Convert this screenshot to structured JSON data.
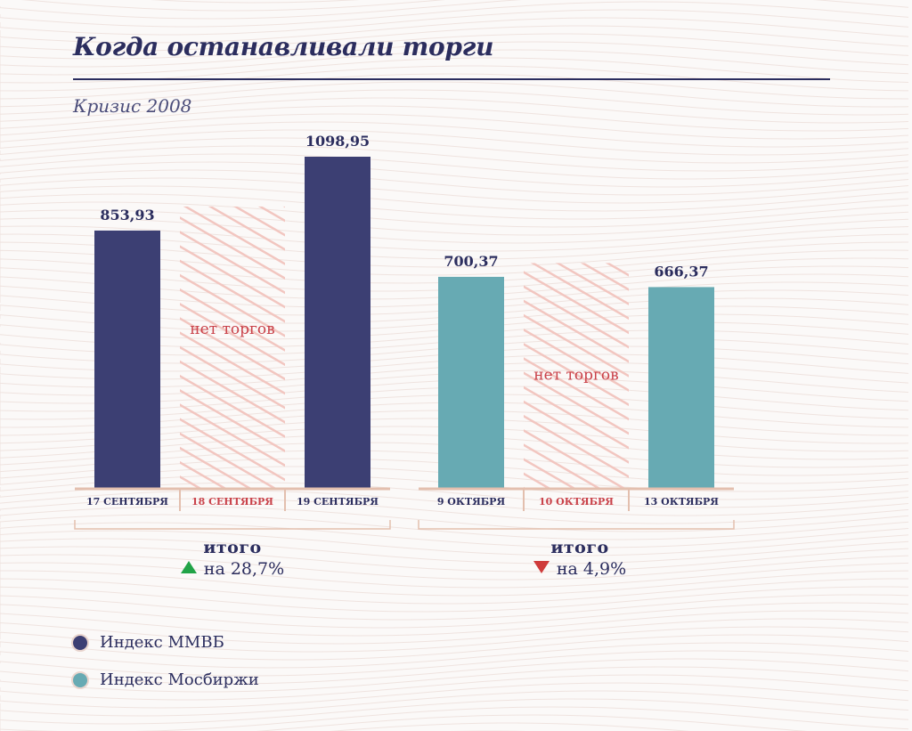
{
  "header": {
    "title": "Когда останавливали торги",
    "subtitle": "Кризис 2008"
  },
  "chart_data": {
    "type": "bar",
    "no_trade_label": "нет торгов",
    "groups": [
      {
        "series": "Индекс ММВБ",
        "categories": [
          {
            "label": "17 СЕНТЯБРЯ",
            "value": 853.93,
            "value_label": "853,93",
            "traded": true
          },
          {
            "label": "18 СЕНТЯБРЯ",
            "value": null,
            "traded": false
          },
          {
            "label": "19 СЕНТЯБРЯ",
            "value": 1098.95,
            "value_label": "1098,95",
            "traded": true
          }
        ],
        "summary": {
          "title": "итого",
          "change": "на 28,7%",
          "direction": "up"
        }
      },
      {
        "series": "Индекс Мосбиржи",
        "categories": [
          {
            "label": "9 ОКТЯБРЯ",
            "value": 700.37,
            "value_label": "700,37",
            "traded": true
          },
          {
            "label": "10 ОКТЯБРЯ",
            "value": null,
            "traded": false
          },
          {
            "label": "13 ОКТЯБРЯ",
            "value": 666.37,
            "value_label": "666,37",
            "traded": true
          }
        ],
        "summary": {
          "title": "итого",
          "change": "на 4,9%",
          "direction": "down"
        }
      }
    ],
    "ylim": [
      0,
      1098.95
    ],
    "grid": false,
    "legend_position": "bottom-left",
    "series": [
      {
        "name": "Индекс ММВБ",
        "color": "#3c3f73"
      },
      {
        "name": "Индекс Мосбиржи",
        "color": "#67aab3"
      }
    ]
  },
  "colors": {
    "accent": "#2b2d5e",
    "no_trade": "#c9424a",
    "axis": "#e3bfae",
    "up": "#21a347",
    "down": "#cf3b3b"
  },
  "summaries": [
    {
      "title": "итого",
      "change": "на 28,7%"
    },
    {
      "title": "итого",
      "change": "на 4,9%"
    }
  ],
  "legend": [
    {
      "label": "Индекс ММВБ",
      "color": "#3c3f73"
    },
    {
      "label": "Индекс Мосбиржи",
      "color": "#67aab3"
    }
  ]
}
